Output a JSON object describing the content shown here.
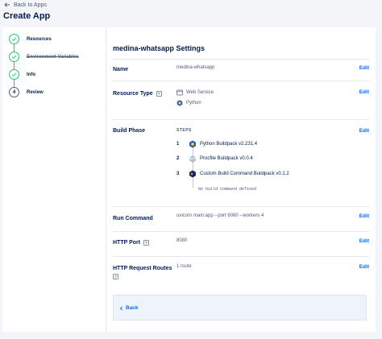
{
  "header": {
    "back_link": "Back to Apps",
    "title": "Create App"
  },
  "steps": [
    {
      "label": "Resources",
      "status": "done"
    },
    {
      "label": "Environment Variables",
      "status": "done"
    },
    {
      "label": "Info",
      "status": "done"
    },
    {
      "label": "Review",
      "status": "current",
      "number": "4"
    }
  ],
  "settings": {
    "title": "medina-whatsapp Settings",
    "edit_label": "Edit",
    "name": {
      "label": "Name",
      "value": "medina-whatsapp"
    },
    "resource_type": {
      "label": "Resource Type",
      "help": "?",
      "service": "Web Service",
      "runtime": "Python"
    },
    "build_phase": {
      "label": "Build Phase",
      "steps_header": "STEPS",
      "buildpacks": [
        {
          "number": "1",
          "name": "Python Buildpack v2.231.4",
          "icon": "python-icon"
        },
        {
          "number": "2",
          "name": "Procfile Buildpack v0.0.4",
          "icon": "layers-icon"
        },
        {
          "number": "3",
          "name": "Custom Build Command Buildpack v0.1.2",
          "icon": "terminal-icon"
        }
      ],
      "no_command": "No build command defined"
    },
    "run_command": {
      "label": "Run Command",
      "value": "uvicorn main:app --port 8080 --workers 4"
    },
    "http_port": {
      "label": "HTTP Port",
      "help": "?",
      "value": "8080"
    },
    "http_routes": {
      "label": "HTTP Request Routes",
      "help": "?",
      "value": "1 route"
    }
  },
  "footer": {
    "back_label": "Back"
  },
  "colors": {
    "accent": "#0069ff",
    "success": "#15cd72",
    "text": "#031b4e"
  }
}
